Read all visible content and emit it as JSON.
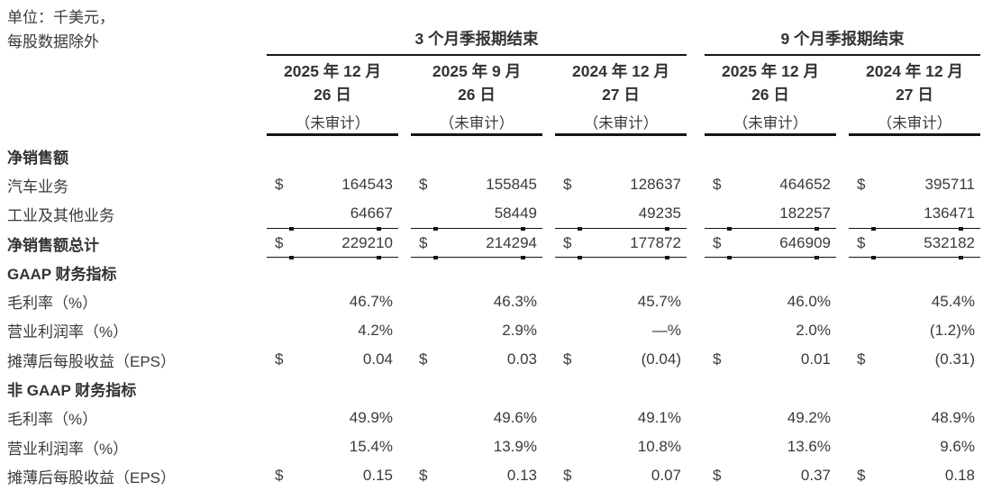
{
  "meta": {
    "unit_line1": "单位：千美元，",
    "unit_line2": "每股数据除外"
  },
  "symbols": {
    "dollar": "$"
  },
  "header": {
    "groups": [
      {
        "label": "3 个月季报期结束"
      },
      {
        "label": "9 个月季报期结束"
      }
    ],
    "columns": [
      {
        "line1": "2025 年 12 月",
        "line2": "26 日",
        "note": "（未审计）"
      },
      {
        "line1": "2025 年 9 月",
        "line2": "26 日",
        "note": "（未审计）"
      },
      {
        "line1": "2024 年 12 月",
        "line2": "27 日",
        "note": "（未审计）"
      },
      {
        "line1": "2025 年 12 月",
        "line2": "26 日",
        "note": "（未审计）"
      },
      {
        "line1": "2024 年 12 月",
        "line2": "27 日",
        "note": "（未审计）"
      }
    ]
  },
  "rows": [
    {
      "label": "净销售额",
      "type": "section",
      "values": []
    },
    {
      "label": "汽车业务",
      "type": "data",
      "currency": true,
      "values": [
        "164543",
        "155845",
        "128637",
        "464652",
        "395711"
      ]
    },
    {
      "label": "工业及其他业务",
      "type": "data",
      "currency": false,
      "rule_below": true,
      "values": [
        "64667",
        "58449",
        "49235",
        "182257",
        "136471"
      ]
    },
    {
      "label": "净销售额总计",
      "type": "total",
      "currency": true,
      "rule_below": true,
      "values": [
        "229210",
        "214294",
        "177872",
        "646909",
        "532182"
      ]
    },
    {
      "label": "GAAP 财务指标",
      "type": "section",
      "values": []
    },
    {
      "label": "毛利率（%）",
      "type": "data",
      "currency": false,
      "values": [
        "46.7%",
        "46.3%",
        "45.7%",
        "46.0%",
        "45.4%"
      ]
    },
    {
      "label": "营业利润率（%）",
      "type": "data",
      "currency": false,
      "values": [
        "4.2%",
        "2.9%",
        "—%",
        "2.0%",
        "(1.2)%"
      ]
    },
    {
      "label": "摊薄后每股收益（EPS）",
      "type": "data",
      "currency": true,
      "values": [
        "0.04",
        "0.03",
        "(0.04)",
        "0.01",
        "(0.31)"
      ]
    },
    {
      "label": "非 GAAP 财务指标",
      "type": "section",
      "values": []
    },
    {
      "label": "毛利率（%）",
      "type": "data",
      "currency": false,
      "values": [
        "49.9%",
        "49.6%",
        "49.1%",
        "49.2%",
        "48.9%"
      ]
    },
    {
      "label": "营业利润率（%）",
      "type": "data",
      "currency": false,
      "values": [
        "15.4%",
        "13.9%",
        "10.8%",
        "13.6%",
        "9.6%"
      ]
    },
    {
      "label": "摊薄后每股收益（EPS）",
      "type": "data",
      "currency": true,
      "values": [
        "0.15",
        "0.13",
        "0.07",
        "0.37",
        "0.18"
      ]
    }
  ]
}
